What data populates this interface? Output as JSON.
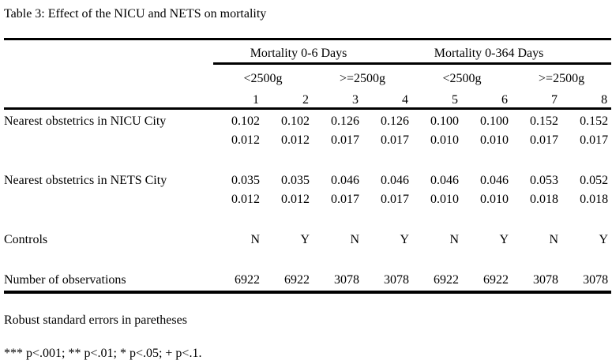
{
  "caption": "Table 3: Effect of the NICU and NETS on mortality",
  "table": {
    "group_headers": [
      {
        "label": "Mortality 0-6 Days"
      },
      {
        "label": "Mortality 0-364 Days"
      }
    ],
    "subgroup_headers": [
      "<2500g",
      ">=2500g",
      "<2500g",
      ">=2500g"
    ],
    "column_numbers": [
      "1",
      "2",
      "3",
      "4",
      "5",
      "6",
      "7",
      "8"
    ],
    "rows": [
      {
        "label": "Nearest obstetrics in NICU City",
        "values": [
          "0.102",
          "0.102",
          "0.126",
          "0.126",
          "0.100",
          "0.100",
          "0.152",
          "0.152"
        ]
      },
      {
        "label": "",
        "values": [
          "0.012",
          "0.012",
          "0.017",
          "0.017",
          "0.010",
          "0.010",
          "0.017",
          "0.017"
        ]
      },
      {
        "label": "Nearest obstetrics in NETS City",
        "values": [
          "0.035",
          "0.035",
          "0.046",
          "0.046",
          "0.046",
          "0.046",
          "0.053",
          "0.052"
        ]
      },
      {
        "label": "",
        "values": [
          "0.012",
          "0.012",
          "0.017",
          "0.017",
          "0.010",
          "0.010",
          "0.018",
          "0.018"
        ]
      },
      {
        "label": "Controls",
        "values": [
          "N",
          "Y",
          "N",
          "Y",
          "N",
          "Y",
          "N",
          "Y"
        ]
      },
      {
        "label": "Number of observations",
        "values": [
          "6922",
          "6922",
          "3078",
          "3078",
          "6922",
          "6922",
          "3078",
          "3078"
        ]
      }
    ]
  },
  "notes": [
    "Robust standard errors in paretheses",
    "*** p<.001; ** p<.01; * p<.05; + p<.1."
  ],
  "colors": {
    "text": "#000000",
    "background": "#ffffff",
    "rule": "#000000"
  }
}
